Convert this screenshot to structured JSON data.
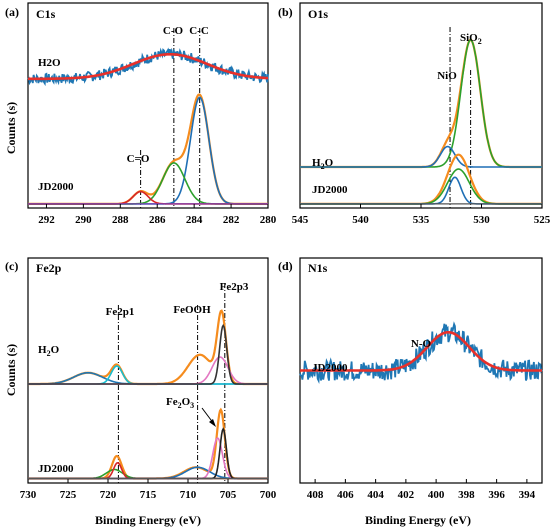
{
  "figure": {
    "xlabel": "Binding Energy (eV)",
    "ylabel": "Counts (s)"
  },
  "chart_data": [
    {
      "type": "line",
      "panel": "(a)",
      "title": "C1s",
      "xlabel": "",
      "ylabel": "Counts (s)",
      "xlim": [
        293,
        280
      ],
      "xticks": [
        292,
        290,
        288,
        286,
        284,
        282,
        280
      ],
      "annotations": [
        "C-O",
        "C-C",
        "C=O"
      ],
      "sample_labels": [
        "H2O",
        "JD2000"
      ],
      "reference_lines": [
        285.1,
        283.7,
        286.9
      ],
      "series": [
        {
          "name": "H2O",
          "role": "raw",
          "color": "#1f77b4",
          "center": 285.3,
          "amp": 0.12,
          "sigma": 2.0,
          "noise": 0.025,
          "base": 0.63
        },
        {
          "name": "H2O",
          "role": "fit",
          "color": "#e8302a",
          "center": 285.3,
          "amp": 0.12,
          "sigma": 2.0,
          "noise": 0,
          "base": 0.63
        },
        {
          "name": "JD2000",
          "role": "envelope",
          "color": "#f58c1e",
          "peaks": [
            [
              283.7,
              0.52,
              0.5
            ],
            [
              285.1,
              0.2,
              0.6
            ],
            [
              286.9,
              0.06,
              0.4
            ]
          ],
          "base": 0.02
        },
        {
          "name": "JD2000",
          "role": "component",
          "color": "#1f6fb5",
          "peaks": [
            [
              283.7,
              0.52,
              0.5
            ]
          ],
          "base": 0.02
        },
        {
          "name": "JD2000",
          "role": "component",
          "color": "#2ca02c",
          "peaks": [
            [
              285.1,
              0.2,
              0.6
            ]
          ],
          "base": 0.02
        },
        {
          "name": "JD2000",
          "role": "component",
          "color": "#d62728",
          "peaks": [
            [
              286.9,
              0.06,
              0.4
            ]
          ],
          "base": 0.02
        }
      ]
    },
    {
      "type": "line",
      "panel": "(b)",
      "title": "O1s",
      "xlabel": "",
      "ylabel": "",
      "xlim": [
        545,
        525
      ],
      "xticks": [
        545,
        540,
        535,
        530,
        525
      ],
      "annotations": [
        "SiO",
        "2",
        "NiO"
      ],
      "sample_labels": [
        "H",
        "2",
        "O",
        "JD2000"
      ],
      "reference_lines": [
        532.6,
        530.9
      ],
      "series": [
        {
          "name": "H2O",
          "role": "envelope",
          "color": "#f58c1e",
          "peaks": [
            [
              530.9,
              0.62,
              0.8
            ],
            [
              532.8,
              0.1,
              0.6
            ]
          ],
          "base": 0.2
        },
        {
          "name": "H2O",
          "role": "component",
          "color": "#2ca02c",
          "peaks": [
            [
              530.9,
              0.62,
              0.8
            ]
          ],
          "base": 0.2
        },
        {
          "name": "H2O",
          "role": "component",
          "color": "#1f6fb5",
          "peaks": [
            [
              532.8,
              0.1,
              0.6
            ]
          ],
          "base": 0.2
        },
        {
          "name": "JD2000",
          "role": "envelope",
          "color": "#f58c1e",
          "peaks": [
            [
              531.9,
              0.24,
              0.9
            ]
          ],
          "base": 0.02
        },
        {
          "name": "JD2000",
          "role": "component",
          "color": "#2ca02c",
          "peaks": [
            [
              531.9,
              0.17,
              0.9
            ]
          ],
          "base": 0.02
        },
        {
          "name": "JD2000",
          "role": "component",
          "color": "#1f6fb5",
          "peaks": [
            [
              532.2,
              0.13,
              0.5
            ]
          ],
          "base": 0.02
        }
      ]
    },
    {
      "type": "line",
      "panel": "(c)",
      "title": "Fe2p",
      "xlabel": "Binding Energy (eV)",
      "ylabel": "Counts (s)",
      "xlim": [
        730,
        700
      ],
      "xticks": [
        730,
        725,
        720,
        715,
        710,
        705,
        700
      ],
      "annotations": [
        "Fe2p1",
        "FeOOH",
        "Fe2p3",
        "Fe",
        "2",
        "O",
        "3"
      ],
      "sample_labels": [
        "H",
        "2",
        "O",
        "JD2000"
      ],
      "reference_lines": [
        718.7,
        708.8,
        705.4
      ],
      "series": [
        {
          "name": "H2O",
          "role": "envelope",
          "color": "#f58c1e",
          "peaks": [
            [
              722.5,
              0.05,
              1.8
            ],
            [
              718.9,
              0.08,
              0.7
            ],
            [
              708.5,
              0.13,
              1.5
            ],
            [
              705.8,
              0.3,
              0.55
            ]
          ],
          "base": 0.44
        },
        {
          "name": "H2O",
          "role": "component",
          "color": "#1f77b4",
          "peaks": [
            [
              722.5,
              0.05,
              1.8
            ]
          ],
          "base": 0.44
        },
        {
          "name": "H2O",
          "role": "component",
          "color": "#17becf",
          "peaks": [
            [
              718.9,
              0.08,
              0.7
            ]
          ],
          "base": 0.44
        },
        {
          "name": "H2O",
          "role": "component",
          "color": "#e377c2",
          "peaks": [
            [
              706.0,
              0.12,
              1.0
            ]
          ],
          "base": 0.44
        },
        {
          "name": "H2O",
          "role": "component",
          "color": "#333333",
          "peaks": [
            [
              705.6,
              0.26,
              0.45
            ]
          ],
          "base": 0.44
        },
        {
          "name": "JD2000",
          "role": "envelope",
          "color": "#f58c1e",
          "peaks": [
            [
              718.9,
              0.1,
              0.6
            ],
            [
              709.0,
              0.05,
              1.5
            ],
            [
              705.9,
              0.3,
              0.5
            ]
          ],
          "base": 0.02
        },
        {
          "name": "JD2000",
          "role": "component",
          "color": "#2ca02c",
          "peaks": [
            [
              719.2,
              0.04,
              1.0
            ]
          ],
          "base": 0.02
        },
        {
          "name": "JD2000",
          "role": "component",
          "color": "#d62728",
          "peaks": [
            [
              718.8,
              0.07,
              0.5
            ]
          ],
          "base": 0.02
        },
        {
          "name": "JD2000",
          "role": "component",
          "color": "#1f6fb5",
          "peaks": [
            [
              708.8,
              0.05,
              1.5
            ]
          ],
          "base": 0.02
        },
        {
          "name": "JD2000",
          "role": "component",
          "color": "#e377c2",
          "peaks": [
            [
              706.3,
              0.18,
              0.6
            ]
          ],
          "base": 0.02
        },
        {
          "name": "JD2000",
          "role": "component",
          "color": "#222222",
          "peaks": [
            [
              705.6,
              0.22,
              0.4
            ]
          ],
          "base": 0.02
        }
      ]
    },
    {
      "type": "line",
      "panel": "(d)",
      "title": "N1s",
      "xlabel": "Binding Energy (eV)",
      "ylabel": "",
      "xlim": [
        409,
        393
      ],
      "xticks": [
        408,
        406,
        404,
        402,
        400,
        398,
        396,
        394
      ],
      "annotations": [
        "N-O"
      ],
      "sample_labels": [
        "JD2000"
      ],
      "reference_lines": [],
      "series": [
        {
          "name": "JD2000",
          "role": "raw",
          "color": "#1f77b4",
          "center": 399.2,
          "amp": 0.17,
          "sigma": 1.4,
          "noise": 0.045,
          "base": 0.5
        },
        {
          "name": "JD2000",
          "role": "fit",
          "color": "#e8302a",
          "center": 399.2,
          "amp": 0.17,
          "sigma": 1.4,
          "noise": 0,
          "base": 0.5
        }
      ]
    }
  ]
}
